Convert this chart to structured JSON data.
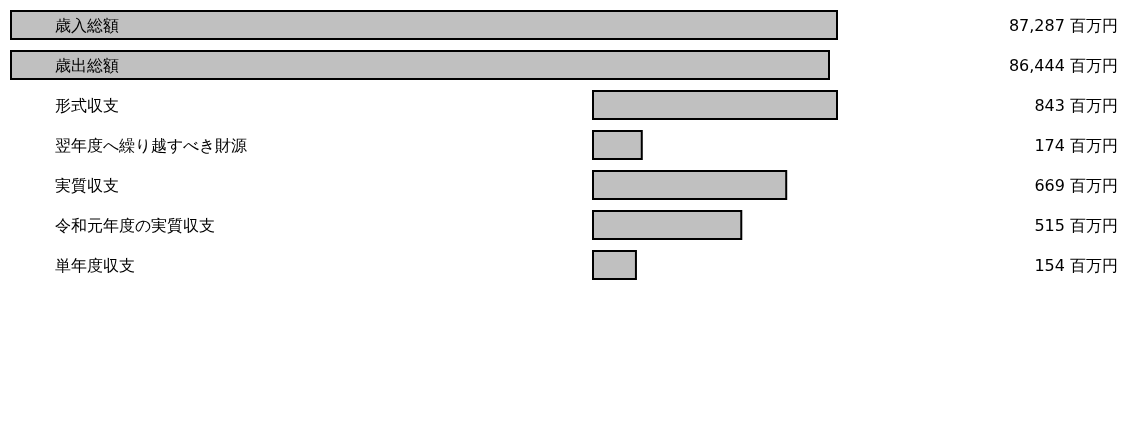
{
  "chart_data": [
    {
      "type": "bar",
      "orientation": "horizontal",
      "categories": [
        "歳入総額",
        "歳出総額"
      ],
      "values": [
        87287,
        86444
      ],
      "value_labels": [
        "87,287 百万円",
        "86,444 百万円"
      ],
      "color": "#c0c0c0",
      "tick_labels": "y"
    },
    {
      "type": "bar",
      "orientation": "horizontal",
      "categories": [
        "形式収支",
        "翌年度へ繰り越すべき財源",
        "実質収支",
        "令和元年度の実質収支",
        "単年度収支"
      ],
      "values": [
        843,
        174,
        669,
        515,
        154
      ],
      "value_labels": [
        "843 百万円",
        "174 百万円",
        "669 百万円",
        "515 百万円",
        "154 百万円"
      ],
      "color": "#c0c0c0",
      "tick_labels": "y"
    }
  ]
}
